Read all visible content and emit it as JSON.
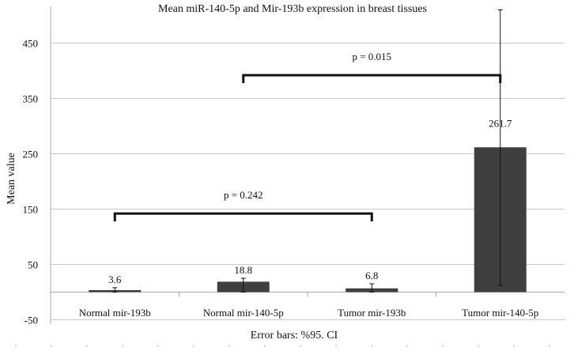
{
  "chart_data": {
    "type": "bar",
    "title": "Mean miR-140-5p and Mir-193b expression in breast tissues",
    "ylabel": "Mean value",
    "xlabel": "Error bars: %95. CI",
    "ylim": [
      -50,
      510
    ],
    "yticks": [
      -50,
      50,
      150,
      250,
      350,
      450
    ],
    "grid": true,
    "categories": [
      "Normal mir-193b",
      "Normal mir-140-5p",
      "Tumor mir-193b",
      "Tumor mir-140-5p"
    ],
    "values": [
      3.6,
      18.8,
      6.8,
      261.7
    ],
    "value_labels": [
      "3.6",
      "18.8",
      "6.8",
      "261.7"
    ],
    "error_low": [
      0,
      0,
      0,
      12
    ],
    "error_high": [
      8,
      25,
      15,
      510
    ],
    "comparisons": [
      {
        "from": "Normal mir-193b",
        "to": "Tumor mir-193b",
        "label": "p = 0.242",
        "y": 142
      },
      {
        "from": "Normal mir-140-5p",
        "to": "Tumor mir-140-5p",
        "label": "p = 0.015",
        "y": 392
      }
    ],
    "colors": {
      "bar": "#3f3f3f",
      "grid": "#c8c8c8",
      "axis": "#a8a8a8",
      "error": "#111111",
      "text": "#111111"
    }
  }
}
